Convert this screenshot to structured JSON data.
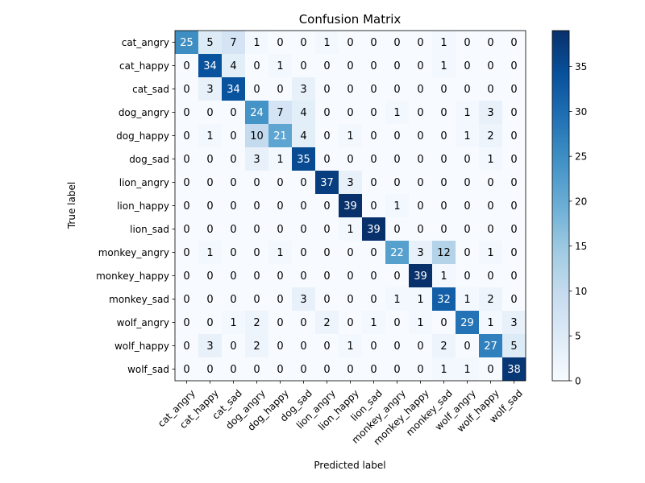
{
  "chart_data": {
    "type": "heatmap",
    "title": "Confusion Matrix",
    "xlabel": "Predicted label",
    "ylabel": "True label",
    "labels": [
      "cat_angry",
      "cat_happy",
      "cat_sad",
      "dog_angry",
      "dog_happy",
      "dog_sad",
      "lion_angry",
      "lion_happy",
      "lion_sad",
      "monkey_angry",
      "monkey_happy",
      "monkey_sad",
      "wolf_angry",
      "wolf_happy",
      "wolf_sad"
    ],
    "matrix": [
      [
        25,
        5,
        7,
        1,
        0,
        0,
        1,
        0,
        0,
        0,
        0,
        1,
        0,
        0,
        0
      ],
      [
        0,
        34,
        4,
        0,
        1,
        0,
        0,
        0,
        0,
        0,
        0,
        1,
        0,
        0,
        0
      ],
      [
        0,
        3,
        34,
        0,
        0,
        3,
        0,
        0,
        0,
        0,
        0,
        0,
        0,
        0,
        0
      ],
      [
        0,
        0,
        0,
        24,
        7,
        4,
        0,
        0,
        0,
        1,
        0,
        0,
        1,
        3,
        0
      ],
      [
        0,
        1,
        0,
        10,
        21,
        4,
        0,
        1,
        0,
        0,
        0,
        0,
        1,
        2,
        0
      ],
      [
        0,
        0,
        0,
        3,
        1,
        35,
        0,
        0,
        0,
        0,
        0,
        0,
        0,
        1,
        0
      ],
      [
        0,
        0,
        0,
        0,
        0,
        0,
        37,
        3,
        0,
        0,
        0,
        0,
        0,
        0,
        0
      ],
      [
        0,
        0,
        0,
        0,
        0,
        0,
        0,
        39,
        0,
        1,
        0,
        0,
        0,
        0,
        0
      ],
      [
        0,
        0,
        0,
        0,
        0,
        0,
        0,
        1,
        39,
        0,
        0,
        0,
        0,
        0,
        0
      ],
      [
        0,
        1,
        0,
        0,
        1,
        0,
        0,
        0,
        0,
        22,
        3,
        12,
        0,
        1,
        0
      ],
      [
        0,
        0,
        0,
        0,
        0,
        0,
        0,
        0,
        0,
        0,
        39,
        1,
        0,
        0,
        0
      ],
      [
        0,
        0,
        0,
        0,
        0,
        3,
        0,
        0,
        0,
        1,
        1,
        32,
        1,
        2,
        0
      ],
      [
        0,
        0,
        1,
        2,
        0,
        0,
        2,
        0,
        1,
        0,
        1,
        0,
        29,
        1,
        3
      ],
      [
        0,
        3,
        0,
        2,
        0,
        0,
        0,
        1,
        0,
        0,
        0,
        2,
        0,
        27,
        5
      ],
      [
        0,
        0,
        0,
        0,
        0,
        0,
        0,
        0,
        0,
        0,
        0,
        1,
        1,
        0,
        38
      ]
    ],
    "colorbar": {
      "min": 0,
      "max": 39,
      "ticks": [
        0,
        5,
        10,
        15,
        20,
        25,
        30,
        35
      ]
    },
    "colormap": "Blues",
    "colors": {
      "light": "#f7fbff",
      "dark": "#08306b",
      "text_dark": "#000000",
      "text_light": "#ffffff"
    }
  }
}
